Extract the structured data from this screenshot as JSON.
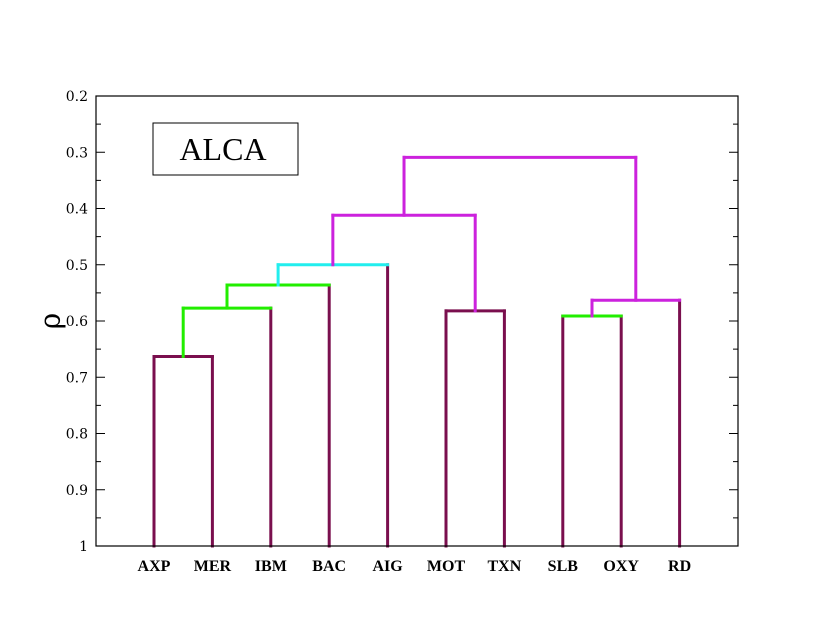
{
  "chart_data": {
    "type": "dendrogram",
    "ylabel": "ρ",
    "ylim": [
      0.2,
      1
    ],
    "yticks": [
      "0.2",
      "0.3",
      "0.4",
      "0.5",
      "0.6",
      "0.7",
      "0.8",
      "0.9",
      "1"
    ],
    "minor_step": 0.05,
    "legend_label": "ALCA",
    "legend_position": "top-left",
    "leaves": [
      "AXP",
      "MER",
      "IBM",
      "BAC",
      "AIG",
      "MOT",
      "TXN",
      "SLB",
      "OXY",
      "RD"
    ],
    "leaf_baseline": 1,
    "colors": {
      "leaf": "#7a0f4e",
      "green": "#22ee00",
      "cyan": "#22eeee",
      "magenta": "#cc22dd",
      "axis": "#000000"
    },
    "merges": [
      {
        "id": "c1",
        "children": [
          "AXP",
          "MER"
        ],
        "height": 0.663,
        "color": "leaf"
      },
      {
        "id": "c2",
        "children": [
          "c1",
          "IBM"
        ],
        "height": 0.577,
        "color": "green"
      },
      {
        "id": "c3",
        "children": [
          "c2",
          "BAC"
        ],
        "height": 0.536,
        "color": "green"
      },
      {
        "id": "c4",
        "children": [
          "c3",
          "AIG"
        ],
        "height": 0.5,
        "color": "cyan"
      },
      {
        "id": "c5",
        "children": [
          "MOT",
          "TXN"
        ],
        "height": 0.582,
        "color": "leaf"
      },
      {
        "id": "c6",
        "children": [
          "c4",
          "c5"
        ],
        "height": 0.412,
        "color": "magenta"
      },
      {
        "id": "c7",
        "children": [
          "SLB",
          "OXY"
        ],
        "height": 0.591,
        "color": "green"
      },
      {
        "id": "c8",
        "children": [
          "c7",
          "RD"
        ],
        "height": 0.563,
        "color": "magenta"
      },
      {
        "id": "c9",
        "children": [
          "c6",
          "c8"
        ],
        "height": 0.309,
        "color": "magenta"
      }
    ]
  }
}
